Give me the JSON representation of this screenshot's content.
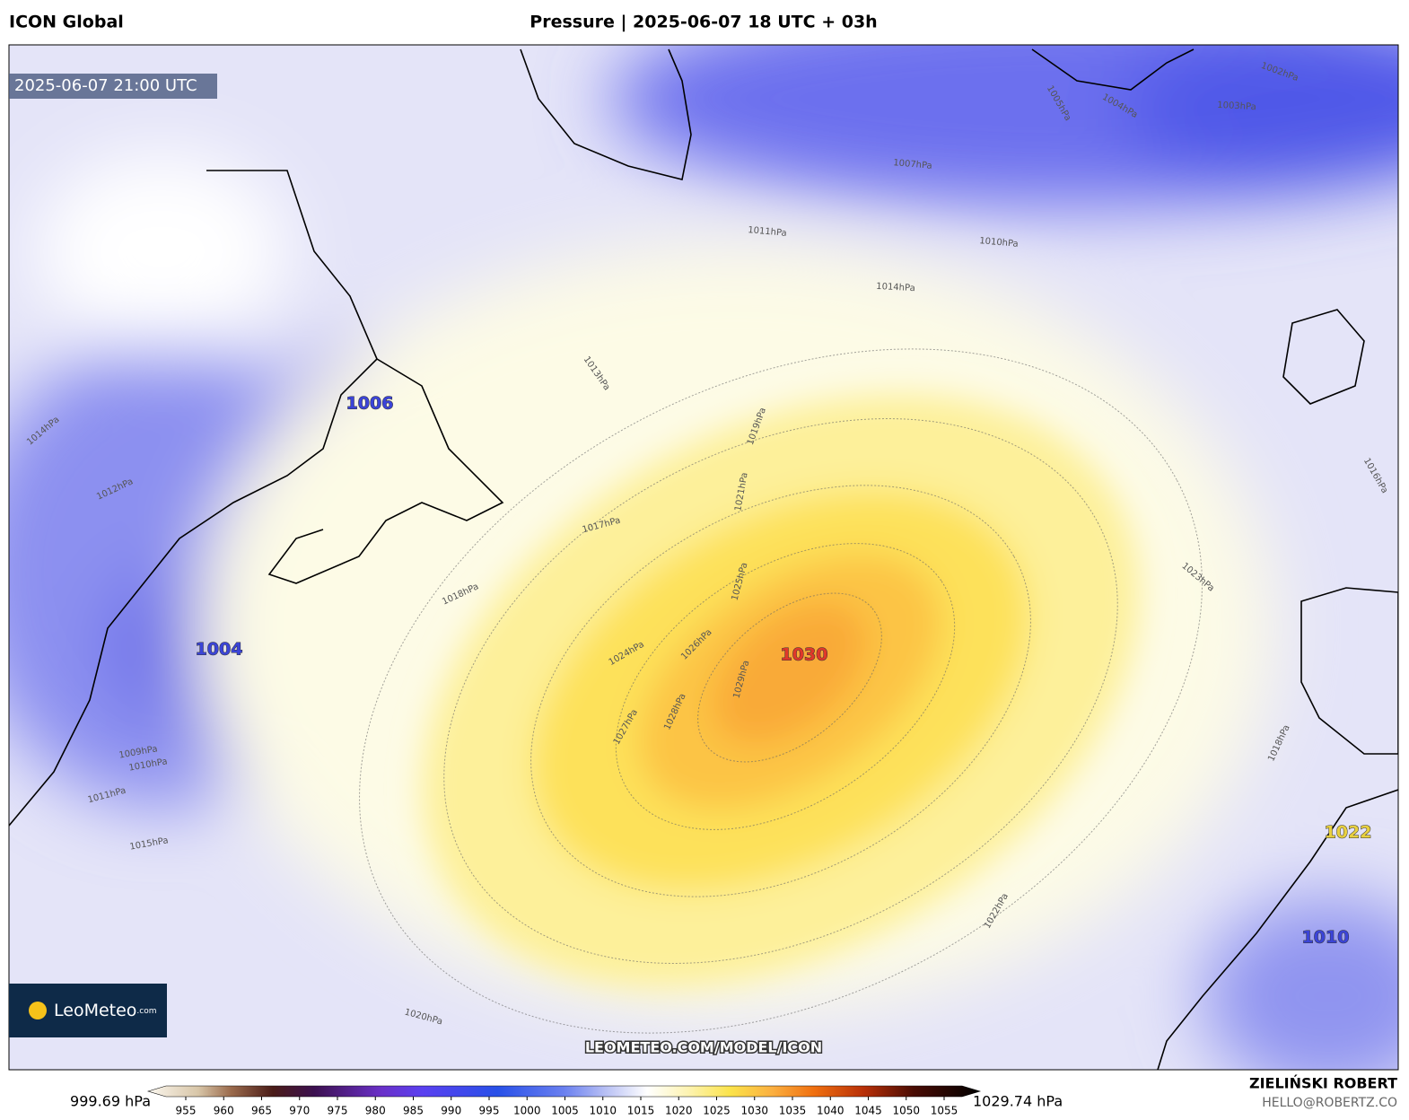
{
  "header": {
    "model": "ICON Global",
    "title": "Pressure | 2025-06-07 18 UTC + 03h"
  },
  "map": {
    "valid_time": "2025-06-07 21:00 UTC",
    "watermark": "LEOMETEO.COM/MODEL/ICON",
    "pressure_centers": [
      1006,
      1004,
      1030,
      1022,
      1010
    ],
    "isobar_labels": [
      "1010hPa",
      "1014hPa",
      "1011hPa",
      "1007hPa",
      "1003hPa",
      "1002hPa",
      "1017hPa",
      "1018hPa",
      "1023hPa",
      "1024hPa",
      "1026hPa",
      "1027hPa",
      "1028hPa",
      "1029hPa",
      "1025hPa",
      "1020hPa",
      "1015hPa",
      "1012hPa",
      "1014hPa",
      "1013hPa",
      "1019hPa",
      "1021hPa",
      "1022hPa",
      "1018hPa",
      "1009hPa",
      "1010hPa",
      "1011hPa",
      "1005hPa",
      "1004hPa",
      "1016hPa"
    ]
  },
  "logo": {
    "brand": "LeoMeteo",
    "suffix": ".com"
  },
  "colorbar": {
    "min_label": "999.69 hPa",
    "max_label": "1029.74 hPa",
    "ticks": [
      955,
      960,
      965,
      970,
      975,
      980,
      985,
      990,
      995,
      1000,
      1005,
      1010,
      1015,
      1020,
      1025,
      1030,
      1035,
      1040,
      1045,
      1050,
      1055
    ]
  },
  "footer": {
    "author": "ZIELIŃSKI ROBERT",
    "email": "HELLO@ROBERTZ.CO"
  }
}
